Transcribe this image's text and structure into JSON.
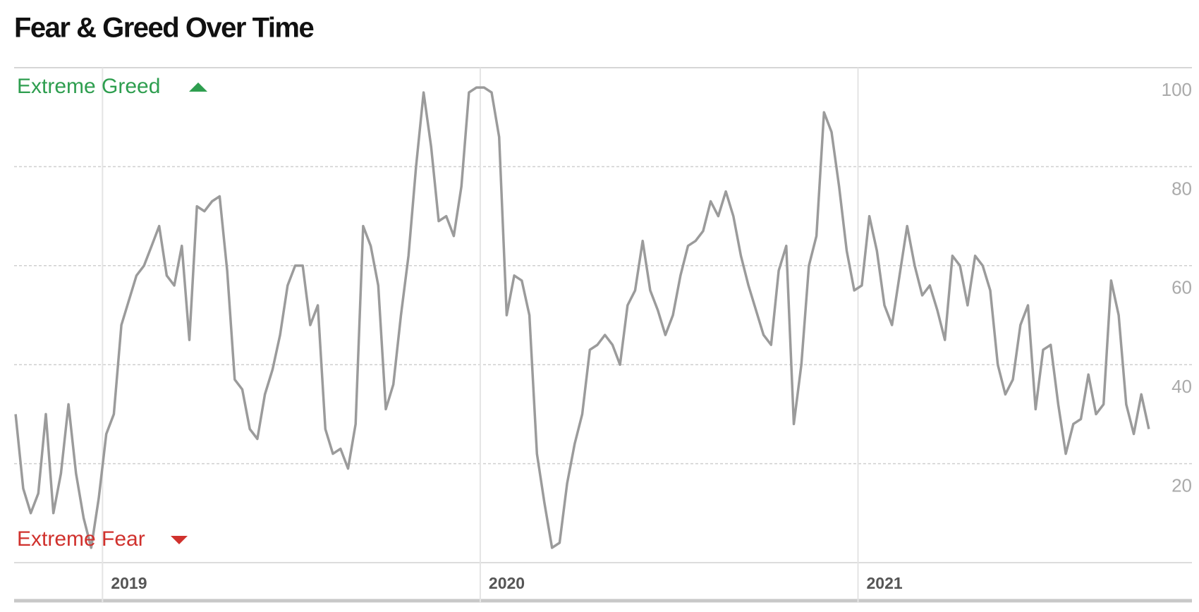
{
  "chart_data": {
    "type": "line",
    "title": "Fear & Greed Over Time",
    "annotations": {
      "top": "Extreme Greed",
      "bottom": "Extreme Fear"
    },
    "x": [
      2018.77,
      2018.79,
      2018.81,
      2018.83,
      2018.85,
      2018.87,
      2018.89,
      2018.91,
      2018.93,
      2018.95,
      2018.97,
      2018.99,
      2019.01,
      2019.03,
      2019.05,
      2019.07,
      2019.09,
      2019.11,
      2019.13,
      2019.15,
      2019.17,
      2019.19,
      2019.21,
      2019.23,
      2019.25,
      2019.27,
      2019.29,
      2019.31,
      2019.33,
      2019.35,
      2019.37,
      2019.39,
      2019.41,
      2019.43,
      2019.45,
      2019.47,
      2019.49,
      2019.51,
      2019.53,
      2019.55,
      2019.57,
      2019.59,
      2019.61,
      2019.63,
      2019.65,
      2019.67,
      2019.69,
      2019.71,
      2019.73,
      2019.75,
      2019.77,
      2019.79,
      2019.81,
      2019.83,
      2019.85,
      2019.87,
      2019.89,
      2019.91,
      2019.93,
      2019.95,
      2019.97,
      2019.99,
      2020.01,
      2020.03,
      2020.05,
      2020.07,
      2020.09,
      2020.11,
      2020.13,
      2020.15,
      2020.17,
      2020.19,
      2020.21,
      2020.23,
      2020.25,
      2020.27,
      2020.29,
      2020.31,
      2020.33,
      2020.35,
      2020.37,
      2020.39,
      2020.41,
      2020.43,
      2020.45,
      2020.47,
      2020.49,
      2020.51,
      2020.53,
      2020.55,
      2020.57,
      2020.59,
      2020.61,
      2020.63,
      2020.65,
      2020.67,
      2020.69,
      2020.71,
      2020.73,
      2020.75,
      2020.77,
      2020.79,
      2020.81,
      2020.83,
      2020.85,
      2020.87,
      2020.89,
      2020.91,
      2020.93,
      2020.95,
      2020.97,
      2020.99,
      2021.01,
      2021.03,
      2021.05,
      2021.07,
      2021.09,
      2021.11,
      2021.13,
      2021.15,
      2021.17,
      2021.19,
      2021.21,
      2021.23,
      2021.25,
      2021.27,
      2021.29,
      2021.31,
      2021.33,
      2021.35,
      2021.37,
      2021.39,
      2021.41,
      2021.43,
      2021.45,
      2021.47,
      2021.49,
      2021.51,
      2021.53,
      2021.55,
      2021.57,
      2021.59,
      2021.61,
      2021.63,
      2021.65,
      2021.67,
      2021.69,
      2021.71,
      2021.73,
      2021.75,
      2021.77
    ],
    "values": [
      30,
      15,
      10,
      14,
      30,
      10,
      18,
      32,
      18,
      9,
      3,
      13,
      26,
      30,
      48,
      53,
      58,
      60,
      64,
      68,
      58,
      56,
      64,
      45,
      72,
      71,
      73,
      74,
      59,
      37,
      35,
      27,
      25,
      34,
      39,
      46,
      56,
      60,
      60,
      48,
      52,
      27,
      22,
      23,
      19,
      28,
      68,
      64,
      56,
      31,
      36,
      50,
      62,
      80,
      95,
      84,
      69,
      70,
      66,
      76,
      95,
      96,
      96,
      95,
      86,
      50,
      58,
      57,
      50,
      22,
      12,
      3,
      4,
      16,
      24,
      30,
      43,
      44,
      46,
      44,
      40,
      52,
      55,
      65,
      55,
      51,
      46,
      50,
      58,
      64,
      65,
      67,
      73,
      70,
      75,
      70,
      62,
      56,
      51,
      46,
      44,
      59,
      64,
      28,
      40,
      60,
      66,
      91,
      87,
      76,
      63,
      55,
      56,
      70,
      63,
      52,
      48,
      58,
      68,
      60,
      54,
      56,
      51,
      45,
      62,
      60,
      52,
      62,
      60,
      55,
      40,
      34,
      37,
      48,
      52,
      31,
      43,
      44,
      32,
      22,
      28,
      29,
      38,
      30,
      32,
      57,
      50,
      32,
      26,
      34,
      27
    ],
    "color": "#9b9b9b",
    "xlim": [
      2018.766,
      2021.884
    ],
    "xticks": [
      2019,
      2020,
      2021
    ],
    "ylim": [
      0,
      100
    ],
    "yticks": [
      20,
      40,
      60,
      80,
      100
    ],
    "grid": true
  }
}
